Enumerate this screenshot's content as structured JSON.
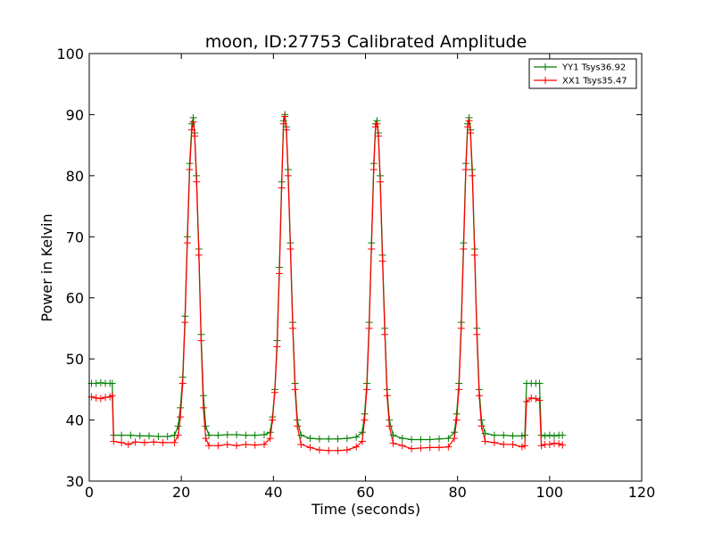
{
  "chart_data": {
    "type": "line",
    "title": "moon, ID:27753 Calibrated Amplitude",
    "xlabel": "Time (seconds)",
    "ylabel": "Power in Kelvin",
    "xlim": [
      0,
      120
    ],
    "ylim": [
      30,
      100
    ],
    "xticks": [
      0,
      20,
      40,
      60,
      80,
      100,
      120
    ],
    "yticks": [
      30,
      40,
      50,
      60,
      70,
      80,
      90,
      100
    ],
    "xtick_labels": [
      "0",
      "20",
      "40",
      "60",
      "80",
      "100",
      "120"
    ],
    "ytick_labels": [
      "30",
      "40",
      "50",
      "60",
      "70",
      "80",
      "90",
      "100"
    ],
    "grid": false,
    "legend_position": "top-right",
    "series": [
      {
        "name": "YY1 Tsys36.92",
        "color": "#008000",
        "marker": "+",
        "points": [
          [
            0.5,
            46.0
          ],
          [
            1.5,
            46.0
          ],
          [
            2.5,
            46.1
          ],
          [
            3.5,
            46.0
          ],
          [
            4.5,
            46.0
          ],
          [
            5.0,
            46.0
          ],
          [
            5.3,
            37.5
          ],
          [
            7,
            37.5
          ],
          [
            9,
            37.5
          ],
          [
            11,
            37.4
          ],
          [
            13,
            37.4
          ],
          [
            15,
            37.3
          ],
          [
            17,
            37.3
          ],
          [
            18.5,
            37.5
          ],
          [
            19.3,
            39.0
          ],
          [
            19.8,
            42.0
          ],
          [
            20.3,
            47.0
          ],
          [
            20.8,
            57.0
          ],
          [
            21.3,
            70.0
          ],
          [
            21.8,
            82.0
          ],
          [
            22.3,
            88.5
          ],
          [
            22.6,
            89.5
          ],
          [
            22.9,
            87.0
          ],
          [
            23.3,
            80.0
          ],
          [
            23.8,
            68.0
          ],
          [
            24.3,
            54.0
          ],
          [
            24.8,
            44.0
          ],
          [
            25.3,
            39.0
          ],
          [
            26,
            37.5
          ],
          [
            28,
            37.5
          ],
          [
            30,
            37.6
          ],
          [
            32,
            37.6
          ],
          [
            34,
            37.5
          ],
          [
            36,
            37.5
          ],
          [
            38,
            37.6
          ],
          [
            39.3,
            38.0
          ],
          [
            39.8,
            40.5
          ],
          [
            40.3,
            45.0
          ],
          [
            40.8,
            53.0
          ],
          [
            41.3,
            65.0
          ],
          [
            41.8,
            79.0
          ],
          [
            42.2,
            89.0
          ],
          [
            42.5,
            90.0
          ],
          [
            42.8,
            88.0
          ],
          [
            43.2,
            81.0
          ],
          [
            43.7,
            69.0
          ],
          [
            44.2,
            56.0
          ],
          [
            44.7,
            46.0
          ],
          [
            45.2,
            40.0
          ],
          [
            46,
            37.5
          ],
          [
            48,
            37.0
          ],
          [
            50,
            36.9
          ],
          [
            52,
            36.9
          ],
          [
            54,
            36.9
          ],
          [
            56,
            37.0
          ],
          [
            58,
            37.2
          ],
          [
            59.3,
            38.0
          ],
          [
            59.8,
            41.0
          ],
          [
            60.3,
            46.0
          ],
          [
            60.8,
            56.0
          ],
          [
            61.3,
            69.0
          ],
          [
            61.8,
            82.0
          ],
          [
            62.2,
            88.5
          ],
          [
            62.5,
            89.0
          ],
          [
            62.8,
            87.0
          ],
          [
            63.2,
            80.0
          ],
          [
            63.7,
            67.0
          ],
          [
            64.2,
            55.0
          ],
          [
            64.7,
            45.0
          ],
          [
            65.2,
            40.0
          ],
          [
            66,
            37.5
          ],
          [
            68,
            37.0
          ],
          [
            70,
            36.8
          ],
          [
            72,
            36.8
          ],
          [
            74,
            36.8
          ],
          [
            76,
            36.9
          ],
          [
            78,
            37.0
          ],
          [
            79.3,
            38.0
          ],
          [
            79.8,
            41.0
          ],
          [
            80.3,
            46.0
          ],
          [
            80.8,
            56.0
          ],
          [
            81.3,
            69.0
          ],
          [
            81.8,
            82.0
          ],
          [
            82.2,
            88.5
          ],
          [
            82.5,
            89.5
          ],
          [
            82.8,
            87.5
          ],
          [
            83.2,
            81.0
          ],
          [
            83.7,
            68.0
          ],
          [
            84.2,
            55.0
          ],
          [
            84.7,
            45.0
          ],
          [
            85.2,
            40.0
          ],
          [
            86,
            37.8
          ],
          [
            88,
            37.5
          ],
          [
            90,
            37.5
          ],
          [
            92,
            37.4
          ],
          [
            94,
            37.4
          ],
          [
            94.6,
            37.5
          ],
          [
            95.0,
            46.0
          ],
          [
            96,
            46.0
          ],
          [
            97,
            46.0
          ],
          [
            97.8,
            46.0
          ],
          [
            98.2,
            37.5
          ],
          [
            99,
            37.4
          ],
          [
            100,
            37.5
          ],
          [
            101,
            37.4
          ],
          [
            102,
            37.5
          ],
          [
            102.8,
            37.5
          ]
        ]
      },
      {
        "name": "XX1 Tsys35.47",
        "color": "#ff0000",
        "marker": "+",
        "points": [
          [
            0.5,
            43.8
          ],
          [
            1.5,
            43.6
          ],
          [
            2.5,
            43.5
          ],
          [
            3.5,
            43.7
          ],
          [
            4.5,
            43.8
          ],
          [
            5.0,
            44.0
          ],
          [
            5.3,
            36.5
          ],
          [
            7,
            36.3
          ],
          [
            8.5,
            36.0
          ],
          [
            10,
            36.4
          ],
          [
            12,
            36.3
          ],
          [
            14,
            36.4
          ],
          [
            16,
            36.3
          ],
          [
            18.5,
            36.3
          ],
          [
            19.3,
            37.5
          ],
          [
            19.8,
            40.5
          ],
          [
            20.3,
            46.0
          ],
          [
            20.8,
            56.0
          ],
          [
            21.3,
            69.0
          ],
          [
            21.8,
            81.0
          ],
          [
            22.3,
            87.5
          ],
          [
            22.6,
            88.8
          ],
          [
            22.9,
            86.5
          ],
          [
            23.3,
            79.0
          ],
          [
            23.8,
            67.0
          ],
          [
            24.3,
            53.0
          ],
          [
            24.8,
            42.0
          ],
          [
            25.3,
            37.0
          ],
          [
            26,
            35.8
          ],
          [
            28,
            35.8
          ],
          [
            30,
            36.0
          ],
          [
            32,
            35.8
          ],
          [
            34,
            36.0
          ],
          [
            36,
            35.9
          ],
          [
            38,
            36.0
          ],
          [
            39.3,
            37.0
          ],
          [
            39.8,
            40.0
          ],
          [
            40.3,
            44.5
          ],
          [
            40.8,
            52.0
          ],
          [
            41.3,
            64.0
          ],
          [
            41.8,
            78.0
          ],
          [
            42.2,
            88.5
          ],
          [
            42.5,
            89.7
          ],
          [
            42.8,
            87.5
          ],
          [
            43.2,
            80.0
          ],
          [
            43.7,
            68.0
          ],
          [
            44.2,
            55.0
          ],
          [
            44.7,
            45.0
          ],
          [
            45.2,
            39.0
          ],
          [
            46,
            36.0
          ],
          [
            48,
            35.5
          ],
          [
            50,
            35.1
          ],
          [
            52,
            35.0
          ],
          [
            54,
            35.0
          ],
          [
            56,
            35.1
          ],
          [
            58,
            35.6
          ],
          [
            59.3,
            36.5
          ],
          [
            59.8,
            40.0
          ],
          [
            60.3,
            45.0
          ],
          [
            60.8,
            55.0
          ],
          [
            61.3,
            68.0
          ],
          [
            61.8,
            81.0
          ],
          [
            62.2,
            88.0
          ],
          [
            62.5,
            88.5
          ],
          [
            62.8,
            86.5
          ],
          [
            63.2,
            79.0
          ],
          [
            63.7,
            66.0
          ],
          [
            64.2,
            54.0
          ],
          [
            64.7,
            44.0
          ],
          [
            65.2,
            39.0
          ],
          [
            66,
            36.2
          ],
          [
            68,
            35.8
          ],
          [
            70,
            35.3
          ],
          [
            72,
            35.4
          ],
          [
            74,
            35.5
          ],
          [
            76,
            35.5
          ],
          [
            78,
            35.6
          ],
          [
            79.3,
            37.0
          ],
          [
            79.8,
            40.0
          ],
          [
            80.3,
            45.0
          ],
          [
            80.8,
            55.0
          ],
          [
            81.3,
            68.0
          ],
          [
            81.8,
            81.0
          ],
          [
            82.2,
            88.0
          ],
          [
            82.5,
            89.0
          ],
          [
            82.8,
            87.0
          ],
          [
            83.2,
            80.0
          ],
          [
            83.7,
            67.0
          ],
          [
            84.2,
            54.0
          ],
          [
            84.7,
            44.0
          ],
          [
            85.2,
            39.0
          ],
          [
            86,
            36.5
          ],
          [
            88,
            36.3
          ],
          [
            90,
            36.0
          ],
          [
            92,
            36.0
          ],
          [
            94,
            35.6
          ],
          [
            94.6,
            35.8
          ],
          [
            95.0,
            43.0
          ],
          [
            96,
            43.6
          ],
          [
            97,
            43.5
          ],
          [
            97.8,
            43.2
          ],
          [
            98.2,
            35.8
          ],
          [
            99,
            36.0
          ],
          [
            100,
            36.0
          ],
          [
            101,
            36.2
          ],
          [
            102,
            36.1
          ],
          [
            102.8,
            35.9
          ]
        ]
      }
    ]
  }
}
